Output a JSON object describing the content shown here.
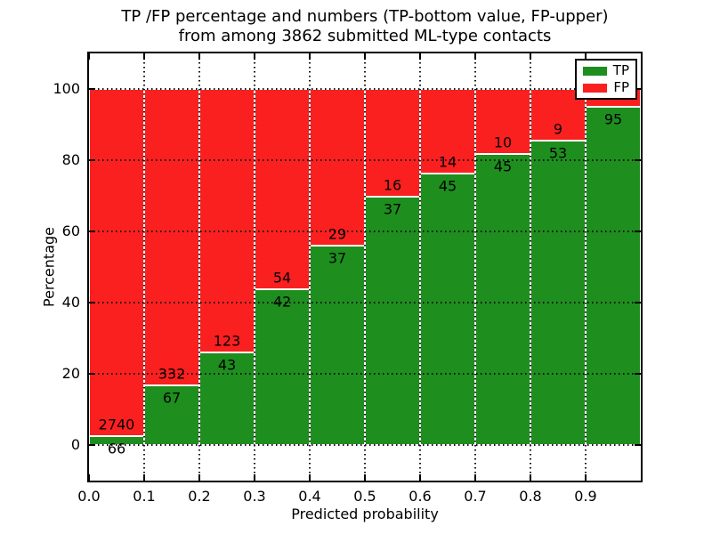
{
  "title": {
    "line1": "TP /FP percentage and numbers (TP-bottom value, FP-upper)",
    "line2": "from among 3862 submitted ML-type contacts"
  },
  "axes": {
    "xlabel": "Predicted probability",
    "ylabel": "Percentage",
    "x_ticks": [
      "0.0",
      "0.1",
      "0.2",
      "0.3",
      "0.4",
      "0.5",
      "0.6",
      "0.7",
      "0.8",
      "0.9"
    ],
    "y_ticks": [
      "0",
      "20",
      "40",
      "60",
      "80",
      "100"
    ],
    "xlim": [
      0.0,
      1.0
    ],
    "ylim": [
      -10,
      110
    ],
    "grid": "dotted-black-both-axes"
  },
  "legend": [
    {
      "label": "TP",
      "color": "#1e8e1e"
    },
    {
      "label": "FP",
      "color": "#fa2020"
    }
  ],
  "colors": {
    "tp_green": "#1e8e1e",
    "fp_red": "#fa2020",
    "bar_edge": "#ffffff",
    "spine": "#000000",
    "background": "#ffffff"
  },
  "chart_data": {
    "type": "bar",
    "mode": "stacked-percentage",
    "title": "TP /FP percentage and numbers (TP-bottom value, FP-upper) from among 3862 submitted ML-type contacts",
    "xlabel": "Predicted probability",
    "ylabel": "Percentage",
    "bin_width": 0.1,
    "legend_position": "upper-right",
    "bars": [
      {
        "x_start": 0.0,
        "tp_count": 66,
        "fp_count": 2740,
        "tp_pct": 2.4
      },
      {
        "x_start": 0.1,
        "tp_count": 67,
        "fp_count": 332,
        "tp_pct": 16.8
      },
      {
        "x_start": 0.2,
        "tp_count": 43,
        "fp_count": 123,
        "tp_pct": 25.9
      },
      {
        "x_start": 0.3,
        "tp_count": 42,
        "fp_count": 54,
        "tp_pct": 43.8
      },
      {
        "x_start": 0.4,
        "tp_count": 37,
        "fp_count": 29,
        "tp_pct": 56.1
      },
      {
        "x_start": 0.5,
        "tp_count": 37,
        "fp_count": 16,
        "tp_pct": 69.8
      },
      {
        "x_start": 0.6,
        "tp_count": 45,
        "fp_count": 14,
        "tp_pct": 76.3
      },
      {
        "x_start": 0.7,
        "tp_count": 45,
        "fp_count": 10,
        "tp_pct": 81.8
      },
      {
        "x_start": 0.8,
        "tp_count": 53,
        "fp_count": 9,
        "tp_pct": 85.5
      },
      {
        "x_start": 0.9,
        "tp_count": 95,
        "fp_count": null,
        "tp_pct": 95.0
      }
    ]
  }
}
